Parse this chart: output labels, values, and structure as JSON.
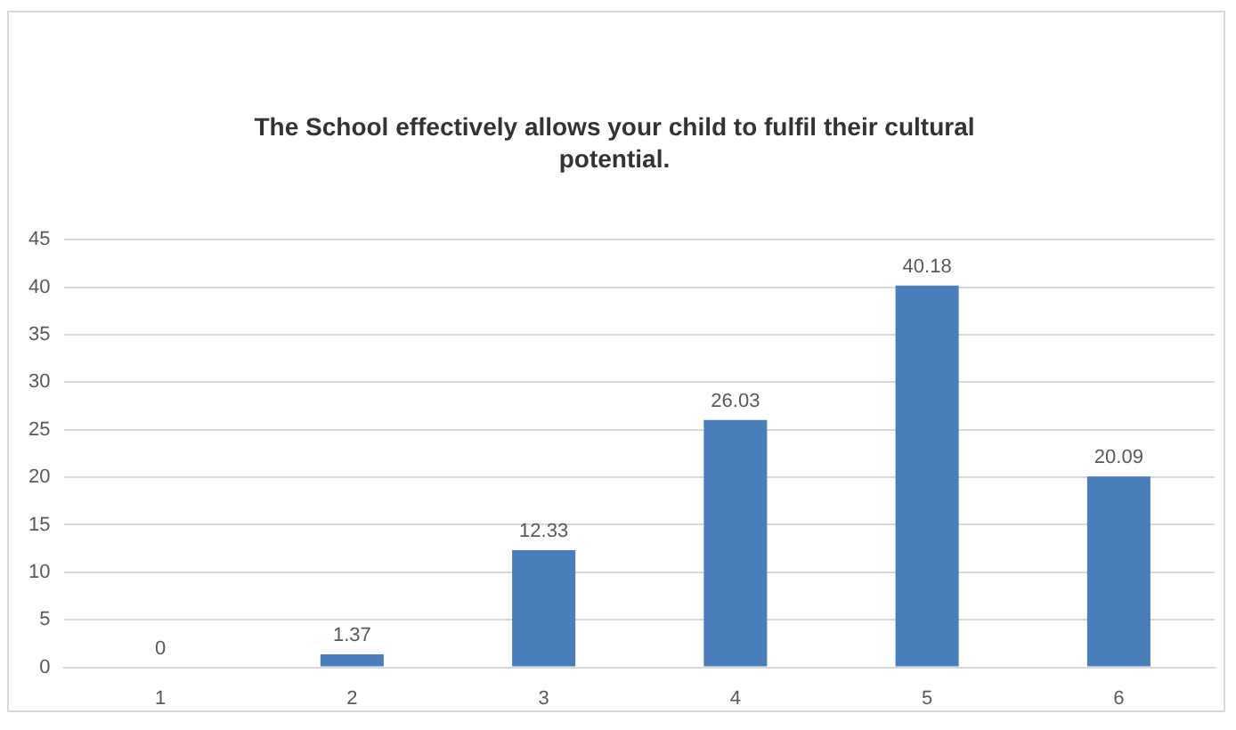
{
  "chart_data": {
    "type": "bar",
    "title": "The School effectively allows your child to fulfil their cultural potential.",
    "categories": [
      "1",
      "2",
      "3",
      "4",
      "5",
      "6"
    ],
    "values": [
      0,
      1.37,
      12.33,
      26.03,
      40.18,
      20.09
    ],
    "color": "#4a7ebb",
    "ylim": [
      0,
      45
    ],
    "yticks": [
      0,
      5,
      10,
      15,
      20,
      25,
      30,
      35,
      40,
      45
    ],
    "grid": "y",
    "data_labels": true,
    "legend": false
  }
}
